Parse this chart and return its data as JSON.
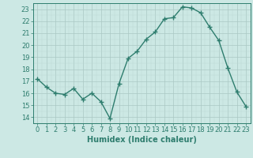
{
  "x": [
    0,
    1,
    2,
    3,
    4,
    5,
    6,
    7,
    8,
    9,
    10,
    11,
    12,
    13,
    14,
    15,
    16,
    17,
    18,
    19,
    20,
    21,
    22,
    23
  ],
  "y": [
    17.2,
    16.5,
    16.0,
    15.9,
    16.4,
    15.5,
    16.0,
    15.3,
    13.9,
    16.8,
    18.9,
    19.5,
    20.5,
    21.1,
    22.2,
    22.3,
    23.2,
    23.1,
    22.7,
    21.5,
    20.4,
    18.1,
    16.1,
    14.9
  ],
  "line_color": "#2e7d6e",
  "bg_color": "#cce8e4",
  "grid_color_major": "#aac8c4",
  "grid_color_minor": "#bcd8d4",
  "xlabel": "Humidex (Indice chaleur)",
  "ylabel_ticks": [
    14,
    15,
    16,
    17,
    18,
    19,
    20,
    21,
    22,
    23
  ],
  "xtick_labels": [
    "0",
    "1",
    "2",
    "3",
    "4",
    "5",
    "6",
    "7",
    "8",
    "9",
    "10",
    "11",
    "12",
    "13",
    "14",
    "15",
    "16",
    "17",
    "18",
    "19",
    "20",
    "21",
    "22",
    "23"
  ],
  "ylim": [
    13.5,
    23.5
  ],
  "xlim": [
    -0.5,
    23.5
  ],
  "tick_color": "#2e7d6e",
  "label_fontsize": 7,
  "tick_fontsize": 6,
  "marker": "+",
  "marker_size": 4,
  "linewidth": 1.0
}
